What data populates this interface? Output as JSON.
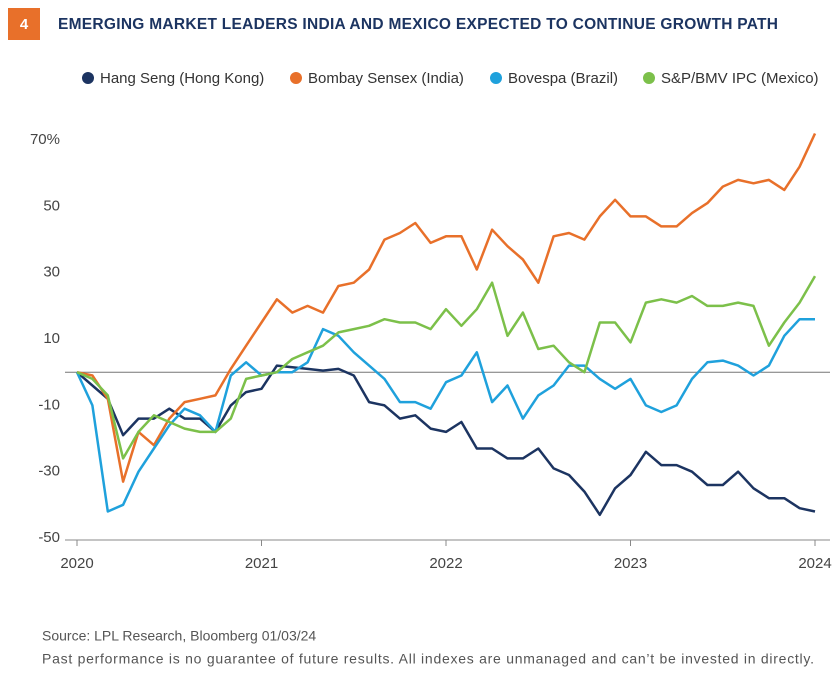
{
  "figure_number": "4",
  "chart_data": {
    "type": "line",
    "title": "EMERGING MARKET LEADERS INDIA AND MEXICO EXPECTED TO CONTINUE GROWTH PATH",
    "categories": [
      "2020",
      null,
      null,
      null,
      null,
      null,
      null,
      null,
      null,
      null,
      null,
      null,
      "2021",
      null,
      null,
      null,
      null,
      null,
      null,
      null,
      null,
      null,
      null,
      null,
      "2022",
      null,
      null,
      null,
      null,
      null,
      null,
      null,
      null,
      null,
      null,
      null,
      "2023",
      null,
      null,
      null,
      null,
      null,
      null,
      null,
      null,
      null,
      null,
      null,
      "2024"
    ],
    "series": [
      {
        "name": "Hang Seng (Hong Kong)",
        "color": "#1c3461",
        "values": [
          0,
          -4,
          -8,
          -19,
          -14,
          -14,
          -11,
          -14,
          -14,
          -18,
          -10,
          -6,
          -5,
          2,
          1.5,
          1,
          0.5,
          1,
          -1,
          -9,
          -10,
          -14,
          -13,
          -17,
          -18,
          -15,
          -23,
          -23,
          -26,
          -26,
          -23,
          -29,
          -31,
          -36,
          -43,
          -35,
          -31,
          -24,
          -28,
          -28,
          -30,
          -34,
          -34,
          -30,
          -35,
          -38,
          -38,
          -41,
          -42
        ]
      },
      {
        "name": "Bombay Sensex (India)",
        "color": "#e8702a",
        "values": [
          0,
          -1,
          -8,
          -33,
          -18,
          -22,
          -14,
          -9,
          -8,
          -7,
          1,
          8,
          15,
          22,
          18,
          20,
          18,
          26,
          27,
          31,
          40,
          42,
          45,
          39,
          41,
          41,
          31,
          43,
          38,
          34,
          27,
          41,
          42,
          40,
          47,
          52,
          47,
          47,
          44,
          44,
          48,
          51,
          56,
          58,
          57,
          58,
          55,
          62,
          72
        ]
      },
      {
        "name": "Bovespa (Brazil)",
        "color": "#1fa1dc",
        "values": [
          0,
          -10,
          -42,
          -40,
          -30,
          -23,
          -16,
          -11,
          -13,
          -18,
          -1,
          3,
          -1,
          0,
          0,
          3,
          13,
          11,
          6,
          2,
          -2,
          -9,
          -9,
          -11,
          -3,
          -1,
          6,
          -9,
          -4,
          -14,
          -7,
          -4,
          2,
          2,
          -2,
          -5,
          -2,
          -10,
          -12,
          -10,
          -2,
          3,
          3.5,
          2,
          -1,
          2,
          11,
          16,
          16
        ]
      },
      {
        "name": "S&P/BMV IPC (Mexico)",
        "color": "#7cc04a",
        "values": [
          0,
          -2,
          -7,
          -26,
          -18,
          -13,
          -15,
          -17,
          -18,
          -18,
          -14,
          -2,
          -1,
          0,
          4,
          6,
          8,
          12,
          13,
          14,
          16,
          15,
          15,
          13,
          19,
          14,
          19,
          27,
          11,
          18,
          7,
          8,
          3,
          0,
          15,
          15,
          9,
          21,
          22,
          21,
          23,
          20,
          20,
          21,
          20,
          8,
          15,
          21,
          29
        ]
      }
    ],
    "ylim": [
      -50,
      80
    ],
    "yticks": [
      -50,
      -30,
      -10,
      10,
      30,
      50,
      {
        "value": 70,
        "label": "70%"
      }
    ]
  },
  "source": "Source: LPL Research, Bloomberg 01/03/24",
  "disclaimer": "Past performance is no guarantee of future results. All indexes are unmanaged and can’t be invested in directly."
}
